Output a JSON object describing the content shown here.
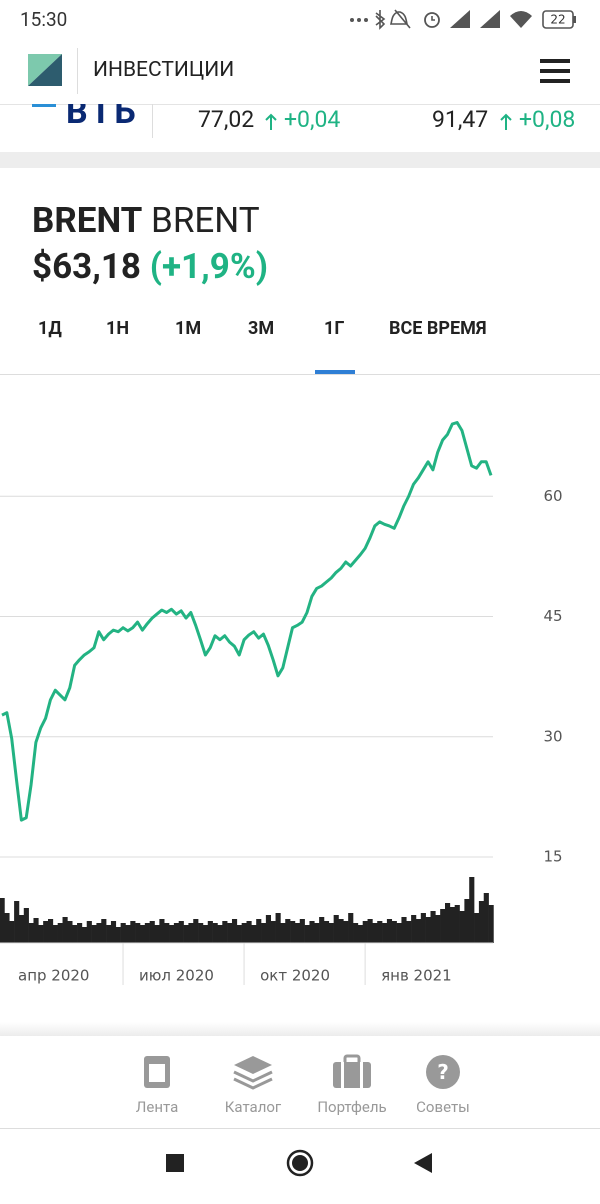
{
  "status_bar": {
    "time": "15:30",
    "battery": "22"
  },
  "header": {
    "title": "ИНВЕСТИЦИИ"
  },
  "ticker": [
    {
      "logo": "ВТБ",
      "price": "77,02",
      "change": "+0,04"
    },
    {
      "price": "91,47",
      "change": "+0,08"
    }
  ],
  "instrument": {
    "ticker": "BRENT",
    "name": "BRENT",
    "price": "$63,18",
    "change": "(+1,9%)"
  },
  "tabs": [
    "1Д",
    "1Н",
    "1М",
    "3М",
    "1Г",
    "ВСЕ ВРЕМЯ"
  ],
  "active_tab": 4,
  "chart_data": {
    "type": "line",
    "color": "#23b383",
    "volume_color": "#222222",
    "grid": true,
    "categories": [
      "апр 2020",
      null,
      null,
      null,
      null,
      null,
      null,
      null,
      null,
      null,
      null,
      null,
      null,
      null,
      null,
      null,
      null,
      null,
      null,
      null,
      null,
      null,
      null,
      null,
      null,
      "июл 2020",
      null,
      null,
      null,
      null,
      null,
      null,
      null,
      null,
      null,
      null,
      null,
      null,
      null,
      null,
      null,
      null,
      null,
      null,
      null,
      null,
      null,
      null,
      null,
      null,
      "окт 2020",
      null,
      null,
      null,
      null,
      null,
      null,
      null,
      null,
      null,
      null,
      null,
      null,
      null,
      null,
      null,
      null,
      null,
      null,
      null,
      null,
      null,
      null,
      null,
      null,
      "янв 2021",
      null,
      null,
      null,
      null,
      null,
      null,
      null,
      null,
      null,
      null,
      null,
      null,
      null,
      null,
      null,
      null,
      null,
      null,
      null,
      null,
      null,
      null,
      null,
      null,
      null,
      null
    ],
    "values": [
      32.7,
      33.0,
      29.8,
      24.6,
      19.6,
      19.9,
      24.0,
      29.3,
      31.1,
      32.3,
      34.6,
      35.8,
      35.2,
      34.6,
      36.1,
      38.9,
      39.6,
      40.2,
      40.6,
      41.1,
      43.1,
      42.1,
      42.8,
      43.3,
      43.1,
      43.6,
      43.2,
      43.6,
      44.3,
      43.3,
      44.1,
      44.8,
      45.3,
      45.8,
      45.5,
      45.9,
      45.3,
      45.7,
      44.8,
      45.5,
      43.9,
      42.1,
      40.2,
      41.1,
      42.6,
      42.1,
      42.6,
      41.8,
      41.3,
      40.2,
      42.1,
      42.7,
      43.1,
      42.3,
      42.8,
      41.4,
      39.6,
      37.6,
      38.6,
      41.1,
      43.6,
      43.9,
      44.3,
      45.5,
      47.5,
      48.5,
      48.8,
      49.3,
      49.8,
      50.5,
      51.0,
      51.8,
      51.3,
      52.0,
      52.7,
      53.5,
      54.8,
      56.3,
      56.8,
      56.5,
      56.3,
      56.0,
      57.3,
      58.8,
      60.0,
      61.5,
      62.3,
      63.3,
      64.3,
      63.3,
      65.5,
      67.0,
      67.7,
      69.0,
      69.2,
      68.2,
      66.0,
      63.8,
      63.5,
      64.3,
      64.3,
      62.6
    ],
    "volume": [
      45,
      30,
      22,
      42,
      28,
      35,
      20,
      25,
      18,
      22,
      24,
      18,
      20,
      26,
      22,
      18,
      20,
      16,
      22,
      18,
      20,
      24,
      18,
      22,
      16,
      20,
      18,
      22,
      20,
      18,
      20,
      22,
      18,
      24,
      20,
      18,
      20,
      22,
      18,
      20,
      24,
      20,
      18,
      22,
      20,
      18,
      22,
      20,
      24,
      18,
      20,
      22,
      18,
      24,
      20,
      28,
      22,
      30,
      20,
      24,
      22,
      20,
      24,
      18,
      22,
      20,
      26,
      22,
      20,
      28,
      24,
      22,
      30,
      20,
      18,
      22,
      24,
      20,
      22,
      20,
      24,
      22,
      20,
      26,
      22,
      28,
      24,
      30,
      26,
      32,
      28,
      34,
      40,
      36,
      38,
      32,
      44,
      66,
      30,
      42,
      50,
      38
    ],
    "ylim": [
      15,
      75
    ],
    "yticks": [
      15,
      30,
      45,
      60
    ]
  },
  "bottom_nav": [
    "Лента",
    "Каталог",
    "Портфель",
    "Советы"
  ]
}
